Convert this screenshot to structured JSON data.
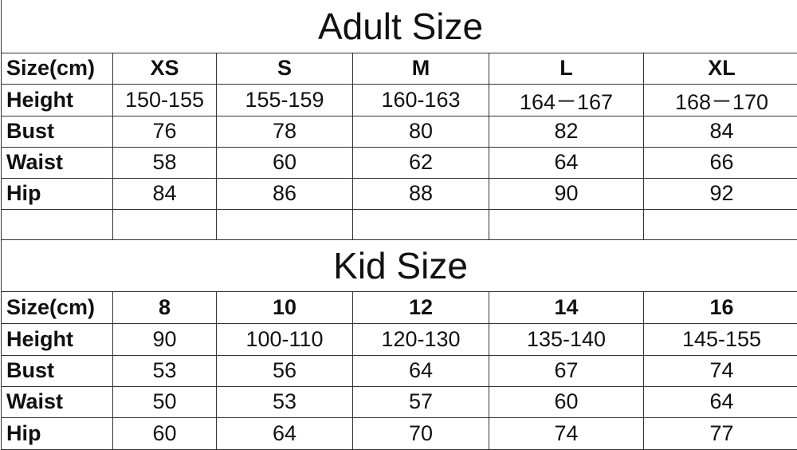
{
  "adult": {
    "title": "Adult Size",
    "header": [
      "Size(cm)",
      "XS",
      "S",
      "M",
      "L",
      "XL"
    ],
    "rows": [
      [
        "Height",
        "150-155",
        "155-159",
        "160-163",
        "164－167",
        "168－170"
      ],
      [
        "Bust",
        "76",
        "78",
        "80",
        "82",
        "84"
      ],
      [
        "Waist",
        "58",
        "60",
        "62",
        "64",
        "66"
      ],
      [
        "Hip",
        "84",
        "86",
        "88",
        "90",
        "92"
      ]
    ]
  },
  "kid": {
    "title": "Kid Size",
    "header": [
      "Size(cm)",
      "8",
      "10",
      "12",
      "14",
      "16"
    ],
    "rows": [
      [
        "Height",
        "90",
        "100-110",
        "120-130",
        "135-140",
        "145-155"
      ],
      [
        "Bust",
        "53",
        "56",
        "64",
        "67",
        "74"
      ],
      [
        "Waist",
        "50",
        "53",
        "57",
        "60",
        "64"
      ],
      [
        "Hip",
        "60",
        "64",
        "70",
        "74",
        "77"
      ]
    ]
  }
}
